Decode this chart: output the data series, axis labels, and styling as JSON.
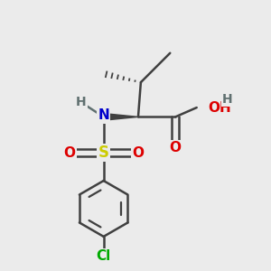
{
  "bg_color": "#ebebeb",
  "atom_colors": {
    "C": "#404040",
    "N": "#0000cc",
    "O": "#dd0000",
    "S": "#cccc00",
    "Cl": "#00aa00",
    "H": "#607070"
  },
  "bond_color": "#404040",
  "figsize": [
    3.0,
    3.0
  ],
  "dpi": 100
}
